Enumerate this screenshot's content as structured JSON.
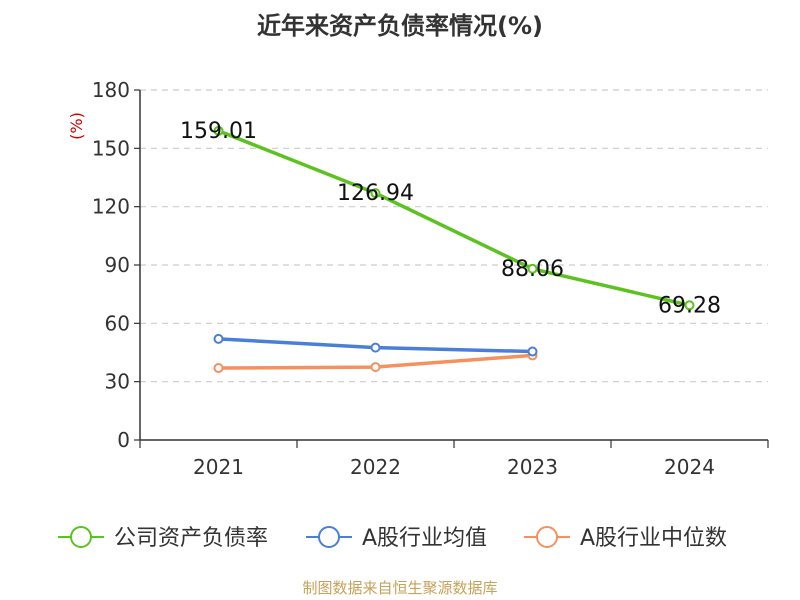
{
  "chart_data": {
    "type": "line",
    "title": "近年来资产负债率情况(%)",
    "ylabel": "(%)",
    "categories": [
      "2021",
      "2022",
      "2023",
      "2024"
    ],
    "ylim": [
      0,
      180
    ],
    "yticks": [
      0,
      30,
      60,
      90,
      120,
      150,
      180
    ],
    "grid": true,
    "legend_position": "bottom",
    "series": [
      {
        "name": "公司资产负债率",
        "color": "#5bc21f",
        "values": [
          159.01,
          126.94,
          88.06,
          69.28
        ],
        "labels": [
          "159.01",
          "126.94",
          "88.06",
          "69.28"
        ]
      },
      {
        "name": "A股行业均值",
        "color": "#4a7fd8",
        "values": [
          52,
          47.5,
          45.5,
          null
        ]
      },
      {
        "name": "A股行业中位数",
        "color": "#f4915e",
        "values": [
          37,
          37.5,
          43.5,
          null
        ]
      }
    ]
  },
  "source": "制图数据来自恒生聚源数据库"
}
